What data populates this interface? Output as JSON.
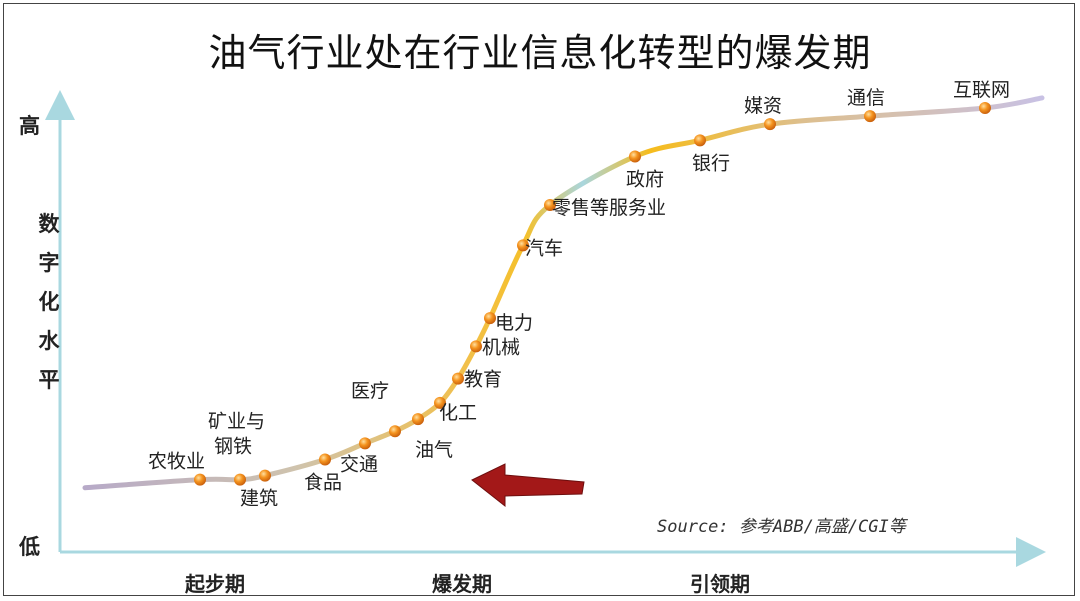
{
  "title": "油气行业处在行业信息化转型的爆发期",
  "source": "Source: 参考ABB/高盛/CGI等",
  "colors": {
    "marker": "#f08a1e",
    "arrow": "#a31818",
    "axis": "#a9d8e0"
  },
  "chart_data": {
    "type": "line",
    "title": "油气行业处在行业信息化转型的爆发期",
    "xlabel": "",
    "ylabel": "数字化水平",
    "y_ticks": [
      "高",
      "低"
    ],
    "phases": [
      "起步期",
      "爆发期",
      "引领期"
    ],
    "points": [
      {
        "label": "农牧业",
        "x": 1.4,
        "y": 0.08
      },
      {
        "label": "矿业与钢铁",
        "x": 1.8,
        "y": 0.08
      },
      {
        "label": "建筑",
        "x": 2.05,
        "y": 0.09
      },
      {
        "label": "食品",
        "x": 2.65,
        "y": 0.13
      },
      {
        "label": "交通",
        "x": 3.05,
        "y": 0.17
      },
      {
        "label": "油气",
        "x": 3.35,
        "y": 0.2,
        "highlight": true
      },
      {
        "label": "医疗",
        "x": 3.58,
        "y": 0.23
      },
      {
        "label": "化工",
        "x": 3.8,
        "y": 0.27
      },
      {
        "label": "教育",
        "x": 3.98,
        "y": 0.33
      },
      {
        "label": "机械",
        "x": 4.16,
        "y": 0.41
      },
      {
        "label": "电力",
        "x": 4.3,
        "y": 0.48
      },
      {
        "label": "汽车",
        "x": 4.63,
        "y": 0.66
      },
      {
        "label": "零售等服务业",
        "x": 4.9,
        "y": 0.76
      },
      {
        "label": "政府",
        "x": 5.75,
        "y": 0.88
      },
      {
        "label": "银行",
        "x": 6.4,
        "y": 0.92
      },
      {
        "label": "媒资",
        "x": 7.1,
        "y": 0.96
      },
      {
        "label": "通信",
        "x": 8.1,
        "y": 0.98
      },
      {
        "label": "互联网",
        "x": 9.25,
        "y": 1.0
      }
    ]
  }
}
